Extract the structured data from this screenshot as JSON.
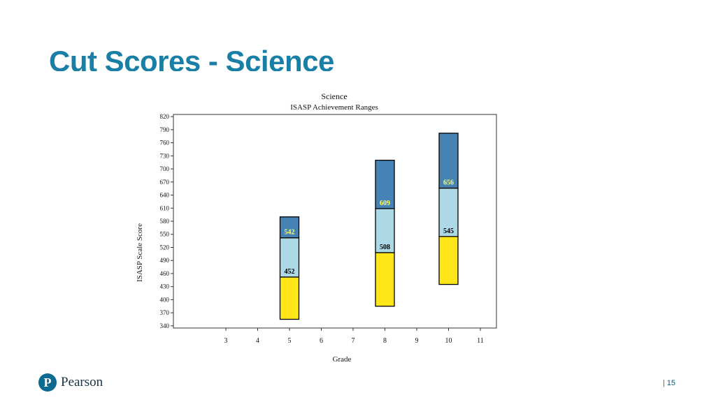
{
  "slide": {
    "title": "Cut Scores - Science",
    "page_number": "15",
    "brand": "Pearson",
    "brand_mark": "P"
  },
  "colors": {
    "title": "#1a7fa6",
    "band_low": "#ffe619",
    "band_mid": "#add8e6",
    "band_high": "#4682b4",
    "label_dark": "#000000",
    "label_light": "#ffff66"
  },
  "chart_data": {
    "type": "bar",
    "title": "Science",
    "subtitle": "ISASP Achievement Ranges",
    "xlabel": "Grade",
    "ylabel": "ISASP Scale Score",
    "x_ticks": [
      "3",
      "4",
      "5",
      "6",
      "7",
      "8",
      "9",
      "10",
      "11"
    ],
    "ylim": [
      335,
      825
    ],
    "y_ticks": [
      340,
      370,
      400,
      430,
      460,
      490,
      520,
      550,
      580,
      610,
      640,
      670,
      700,
      730,
      760,
      790,
      820
    ],
    "grid": false,
    "bars": [
      {
        "grade": "5",
        "min": 355,
        "max": 590,
        "cuts": [
          452,
          542
        ],
        "label_colors": [
          "dark",
          "light"
        ]
      },
      {
        "grade": "8",
        "min": 385,
        "max": 720,
        "cuts": [
          508,
          609
        ],
        "label_colors": [
          "dark",
          "light"
        ]
      },
      {
        "grade": "10",
        "min": 435,
        "max": 782,
        "cuts": [
          545,
          656
        ],
        "label_colors": [
          "dark",
          "light"
        ]
      }
    ]
  }
}
